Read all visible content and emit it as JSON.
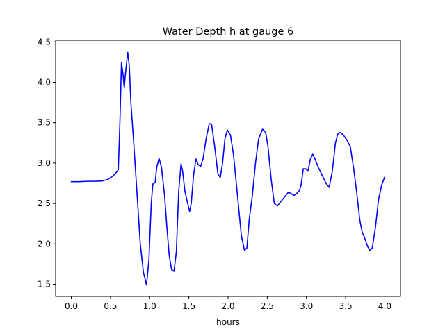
{
  "chart_data": {
    "type": "line",
    "title": "Water Depth h at gauge 6",
    "xlabel": "hours",
    "ylabel": "",
    "xlim": [
      -0.2,
      4.2
    ],
    "ylim": [
      1.35,
      4.52
    ],
    "xticks": [
      0.0,
      0.5,
      1.0,
      1.5,
      2.0,
      2.5,
      3.0,
      3.5,
      4.0
    ],
    "xtick_labels": [
      "0.0",
      "0.5",
      "1.0",
      "1.5",
      "2.0",
      "2.5",
      "3.0",
      "3.5",
      "4.0"
    ],
    "yticks": [
      1.5,
      2.0,
      2.5,
      3.0,
      3.5,
      4.0,
      4.5
    ],
    "ytick_labels": [
      "1.5",
      "2.0",
      "2.5",
      "3.0",
      "3.5",
      "4.0",
      "4.5"
    ],
    "grid": false,
    "legend": "none",
    "series": [
      {
        "color": "#0000ff",
        "points": [
          [
            0.0,
            2.77
          ],
          [
            0.1,
            2.77
          ],
          [
            0.2,
            2.775
          ],
          [
            0.3,
            2.775
          ],
          [
            0.4,
            2.78
          ],
          [
            0.47,
            2.8
          ],
          [
            0.53,
            2.84
          ],
          [
            0.58,
            2.89
          ],
          [
            0.6,
            2.92
          ],
          [
            0.62,
            3.5
          ],
          [
            0.64,
            4.24
          ],
          [
            0.66,
            4.1
          ],
          [
            0.675,
            3.93
          ],
          [
            0.69,
            4.1
          ],
          [
            0.72,
            4.37
          ],
          [
            0.74,
            4.2
          ],
          [
            0.76,
            3.75
          ],
          [
            0.8,
            3.2
          ],
          [
            0.84,
            2.6
          ],
          [
            0.88,
            2.0
          ],
          [
            0.92,
            1.65
          ],
          [
            0.96,
            1.49
          ],
          [
            0.99,
            1.8
          ],
          [
            1.02,
            2.5
          ],
          [
            1.04,
            2.74
          ],
          [
            1.07,
            2.76
          ],
          [
            1.09,
            2.95
          ],
          [
            1.12,
            3.06
          ],
          [
            1.15,
            2.95
          ],
          [
            1.19,
            2.6
          ],
          [
            1.22,
            2.2
          ],
          [
            1.25,
            1.85
          ],
          [
            1.28,
            1.68
          ],
          [
            1.31,
            1.66
          ],
          [
            1.34,
            1.9
          ],
          [
            1.37,
            2.65
          ],
          [
            1.4,
            2.99
          ],
          [
            1.42,
            2.9
          ],
          [
            1.45,
            2.65
          ],
          [
            1.48,
            2.52
          ],
          [
            1.51,
            2.4
          ],
          [
            1.53,
            2.5
          ],
          [
            1.56,
            2.85
          ],
          [
            1.59,
            3.05
          ],
          [
            1.62,
            2.98
          ],
          [
            1.65,
            2.96
          ],
          [
            1.68,
            3.05
          ],
          [
            1.72,
            3.3
          ],
          [
            1.76,
            3.49
          ],
          [
            1.79,
            3.48
          ],
          [
            1.83,
            3.2
          ],
          [
            1.87,
            2.87
          ],
          [
            1.9,
            2.82
          ],
          [
            1.93,
            3.0
          ],
          [
            1.96,
            3.3
          ],
          [
            1.99,
            3.41
          ],
          [
            2.03,
            3.35
          ],
          [
            2.07,
            3.1
          ],
          [
            2.12,
            2.6
          ],
          [
            2.17,
            2.1
          ],
          [
            2.21,
            1.92
          ],
          [
            2.24,
            1.95
          ],
          [
            2.27,
            2.3
          ],
          [
            2.31,
            2.6
          ],
          [
            2.35,
            3.0
          ],
          [
            2.39,
            3.3
          ],
          [
            2.44,
            3.42
          ],
          [
            2.48,
            3.38
          ],
          [
            2.51,
            3.2
          ],
          [
            2.55,
            2.8
          ],
          [
            2.59,
            2.5
          ],
          [
            2.63,
            2.47
          ],
          [
            2.67,
            2.52
          ],
          [
            2.72,
            2.58
          ],
          [
            2.77,
            2.64
          ],
          [
            2.81,
            2.62
          ],
          [
            2.84,
            2.6
          ],
          [
            2.87,
            2.62
          ],
          [
            2.91,
            2.66
          ],
          [
            2.93,
            2.72
          ],
          [
            2.96,
            2.93
          ],
          [
            2.99,
            2.93
          ],
          [
            3.02,
            2.9
          ],
          [
            3.05,
            3.05
          ],
          [
            3.08,
            3.11
          ],
          [
            3.11,
            3.05
          ],
          [
            3.15,
            2.95
          ],
          [
            3.2,
            2.85
          ],
          [
            3.25,
            2.75
          ],
          [
            3.29,
            2.7
          ],
          [
            3.33,
            2.9
          ],
          [
            3.37,
            3.25
          ],
          [
            3.4,
            3.36
          ],
          [
            3.43,
            3.38
          ],
          [
            3.47,
            3.35
          ],
          [
            3.52,
            3.28
          ],
          [
            3.56,
            3.2
          ],
          [
            3.6,
            2.95
          ],
          [
            3.64,
            2.65
          ],
          [
            3.68,
            2.3
          ],
          [
            3.71,
            2.15
          ],
          [
            3.74,
            2.08
          ],
          [
            3.78,
            1.97
          ],
          [
            3.81,
            1.92
          ],
          [
            3.84,
            1.95
          ],
          [
            3.88,
            2.2
          ],
          [
            3.92,
            2.55
          ],
          [
            3.96,
            2.73
          ],
          [
            4.0,
            2.83
          ]
        ]
      }
    ]
  }
}
